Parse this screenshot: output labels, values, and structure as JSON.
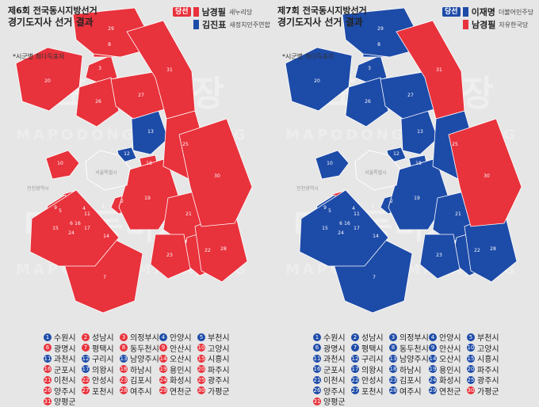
{
  "colors": {
    "red": "#e8323c",
    "blue": "#1d4ba8",
    "seoul": "#e6e6e6"
  },
  "panels": [
    {
      "title_line1": "제6회 전국동시지방선거",
      "title_line2": "경기도지사 선거 결과",
      "note": "*시군별 최다득표자",
      "seoul_label": "서울특별시",
      "incheon_label": "인천광역시",
      "watermark": "마포동마사장",
      "watermark_small": "MAPODONGMASAJANG",
      "candidates": [
        {
          "badge": "당선",
          "name": "남경필",
          "party": "새누리당",
          "color": "red",
          "winner": true
        },
        {
          "badge": "",
          "name": "김진표",
          "party": "새정치민주연합",
          "color": "blue",
          "winner": false
        }
      ],
      "region_colors": [
        "blue",
        "red",
        "red",
        "blue",
        "blue",
        "red",
        "red",
        "red",
        "red",
        "red",
        "blue",
        "blue",
        "blue",
        "red",
        "red",
        "red",
        "blue",
        "red",
        "red",
        "red",
        "red",
        "red",
        "red",
        "red",
        "red",
        "red",
        "red",
        "red",
        "red",
        "red",
        "red"
      ]
    },
    {
      "title_line1": "제7회 전국동시지방선거",
      "title_line2": "경기도지사 선거 결과",
      "note": "*시군별 최다득표자",
      "seoul_label": "서울특별시",
      "incheon_label": "인천광역시",
      "watermark": "마포동마사장",
      "watermark_small": "MAPODONGMASAJANG",
      "candidates": [
        {
          "badge": "당선",
          "name": "이재명",
          "party": "더불어민주당",
          "color": "blue",
          "winner": true
        },
        {
          "badge": "",
          "name": "남경필",
          "party": "자유한국당",
          "color": "red",
          "winner": false
        }
      ],
      "region_colors": [
        "blue",
        "blue",
        "blue",
        "blue",
        "blue",
        "blue",
        "blue",
        "blue",
        "blue",
        "blue",
        "blue",
        "blue",
        "blue",
        "blue",
        "blue",
        "blue",
        "blue",
        "blue",
        "blue",
        "blue",
        "blue",
        "blue",
        "blue",
        "blue",
        "blue",
        "blue",
        "blue",
        "blue",
        "blue",
        "red",
        "red"
      ]
    }
  ],
  "municipalities": [
    "수원시",
    "성남시",
    "의정부시",
    "안양시",
    "부천시",
    "광명시",
    "평택시",
    "동두천시",
    "안산시",
    "고양시",
    "과천시",
    "구리시",
    "남양주시",
    "오산시",
    "시흥시",
    "군포시",
    "의왕시",
    "하남시",
    "용인시",
    "파주시",
    "이천시",
    "안성시",
    "김포시",
    "화성시",
    "광주시",
    "양주시",
    "포천시",
    "여주시",
    "연천군",
    "가평군",
    "양평군"
  ]
}
